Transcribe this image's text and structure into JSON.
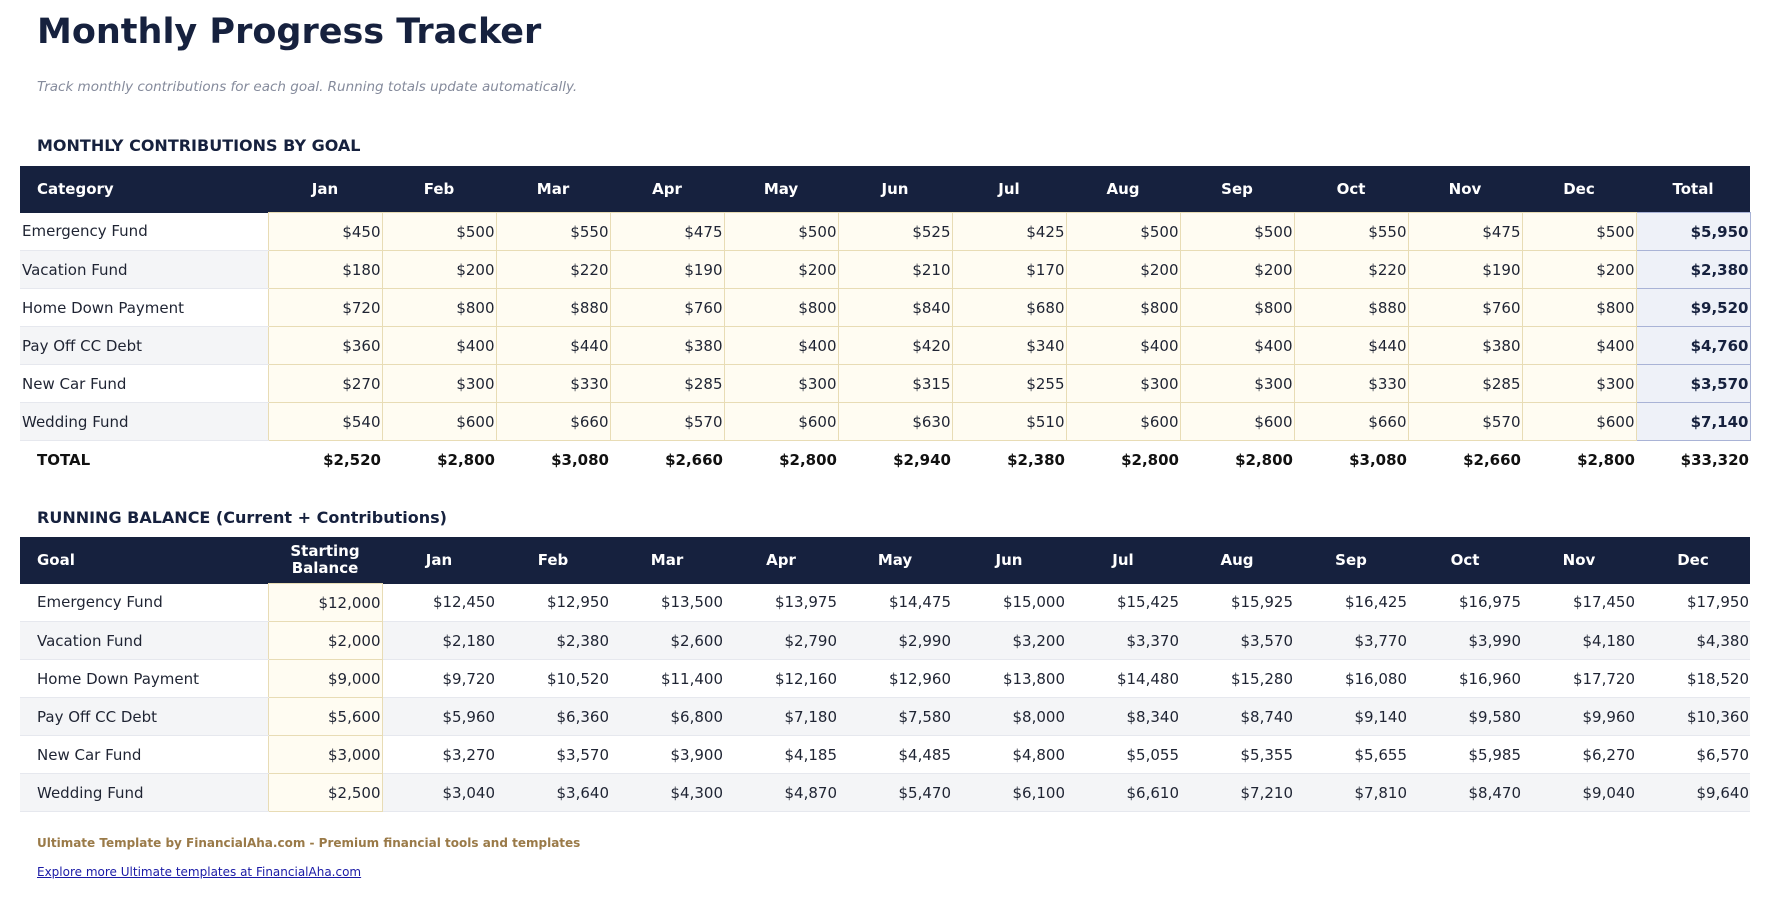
{
  "title": "Monthly Progress Tracker",
  "subtitle": "Track monthly contributions for each goal. Running totals update automatically.",
  "contributions": {
    "heading": "MONTHLY CONTRIBUTIONS BY GOAL",
    "headers": [
      "Category",
      "Jan",
      "Feb",
      "Mar",
      "Apr",
      "May",
      "Jun",
      "Jul",
      "Aug",
      "Sep",
      "Oct",
      "Nov",
      "Dec",
      "Total"
    ],
    "rows": [
      {
        "name": "Emergency Fund",
        "values": [
          "$450",
          "$500",
          "$550",
          "$475",
          "$500",
          "$525",
          "$425",
          "$500",
          "$500",
          "$550",
          "$475",
          "$500"
        ],
        "total": "$5,950"
      },
      {
        "name": "Vacation Fund",
        "values": [
          "$180",
          "$200",
          "$220",
          "$190",
          "$200",
          "$210",
          "$170",
          "$200",
          "$200",
          "$220",
          "$190",
          "$200"
        ],
        "total": "$2,380"
      },
      {
        "name": "Home Down Payment",
        "values": [
          "$720",
          "$800",
          "$880",
          "$760",
          "$800",
          "$840",
          "$680",
          "$800",
          "$800",
          "$880",
          "$760",
          "$800"
        ],
        "total": "$9,520"
      },
      {
        "name": "Pay Off CC Debt",
        "values": [
          "$360",
          "$400",
          "$440",
          "$380",
          "$400",
          "$420",
          "$340",
          "$400",
          "$400",
          "$440",
          "$380",
          "$400"
        ],
        "total": "$4,760"
      },
      {
        "name": "New Car Fund",
        "values": [
          "$270",
          "$300",
          "$330",
          "$285",
          "$300",
          "$315",
          "$255",
          "$300",
          "$300",
          "$330",
          "$285",
          "$300"
        ],
        "total": "$3,570"
      },
      {
        "name": "Wedding Fund",
        "values": [
          "$540",
          "$600",
          "$660",
          "$570",
          "$600",
          "$630",
          "$510",
          "$600",
          "$600",
          "$660",
          "$570",
          "$600"
        ],
        "total": "$7,140"
      }
    ],
    "total_row": {
      "name": "TOTAL",
      "values": [
        "$2,520",
        "$2,800",
        "$3,080",
        "$2,660",
        "$2,800",
        "$2,940",
        "$2,380",
        "$2,800",
        "$2,800",
        "$3,080",
        "$2,660",
        "$2,800"
      ],
      "total": "$33,320"
    }
  },
  "running": {
    "heading": "RUNNING BALANCE (Current + Contributions)",
    "headers": [
      "Goal",
      "Starting Balance",
      "Jan",
      "Feb",
      "Mar",
      "Apr",
      "May",
      "Jun",
      "Jul",
      "Aug",
      "Sep",
      "Oct",
      "Nov",
      "Dec"
    ],
    "rows": [
      {
        "name": "Emergency Fund",
        "start": "$12,000",
        "values": [
          "$12,450",
          "$12,950",
          "$13,500",
          "$13,975",
          "$14,475",
          "$15,000",
          "$15,425",
          "$15,925",
          "$16,425",
          "$16,975",
          "$17,450",
          "$17,950"
        ]
      },
      {
        "name": "Vacation Fund",
        "start": "$2,000",
        "values": [
          "$2,180",
          "$2,380",
          "$2,600",
          "$2,790",
          "$2,990",
          "$3,200",
          "$3,370",
          "$3,570",
          "$3,770",
          "$3,990",
          "$4,180",
          "$4,380"
        ]
      },
      {
        "name": "Home Down Payment",
        "start": "$9,000",
        "values": [
          "$9,720",
          "$10,520",
          "$11,400",
          "$12,160",
          "$12,960",
          "$13,800",
          "$14,480",
          "$15,280",
          "$16,080",
          "$16,960",
          "$17,720",
          "$18,520"
        ]
      },
      {
        "name": "Pay Off CC Debt",
        "start": "$5,600",
        "values": [
          "$5,960",
          "$6,360",
          "$6,800",
          "$7,180",
          "$7,580",
          "$8,000",
          "$8,340",
          "$8,740",
          "$9,140",
          "$9,580",
          "$9,960",
          "$10,360"
        ]
      },
      {
        "name": "New Car Fund",
        "start": "$3,000",
        "values": [
          "$3,270",
          "$3,570",
          "$3,900",
          "$4,185",
          "$4,485",
          "$4,800",
          "$5,055",
          "$5,355",
          "$5,655",
          "$5,985",
          "$6,270",
          "$6,570"
        ]
      },
      {
        "name": "Wedding Fund",
        "start": "$2,500",
        "values": [
          "$3,040",
          "$3,640",
          "$4,300",
          "$4,870",
          "$5,470",
          "$6,100",
          "$6,610",
          "$7,210",
          "$7,810",
          "$8,470",
          "$9,040",
          "$9,640"
        ]
      }
    ]
  },
  "footer": {
    "credit": "Ultimate Template by FinancialAha.com - Premium financial tools and templates",
    "link": "Explore more Ultimate templates at FinancialAha.com"
  },
  "colors": {
    "header": "#16213e",
    "input_cell": "#fffcf2",
    "total_cell": "#eef1f8",
    "credit": "#9a7a48"
  }
}
